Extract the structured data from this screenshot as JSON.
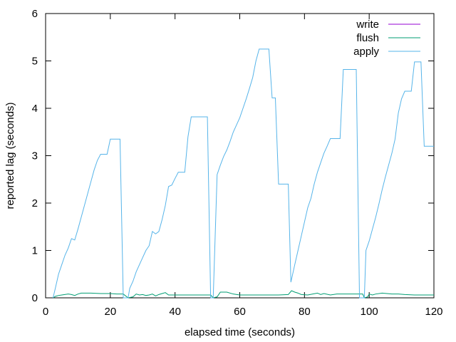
{
  "chart_data": {
    "type": "line",
    "title": "",
    "xlabel": "elapsed time (seconds)",
    "ylabel": "reported lag (seconds)",
    "xlim": [
      0,
      120
    ],
    "ylim": [
      0,
      6
    ],
    "x_ticks": [
      "0",
      "20",
      "40",
      "60",
      "80",
      "100",
      "120"
    ],
    "y_ticks": [
      "0",
      "1",
      "2",
      "3",
      "4",
      "5",
      "6"
    ],
    "grid": false,
    "legend_position": "top-right",
    "series": [
      {
        "name": "write",
        "color": "#9400d3",
        "points": []
      },
      {
        "name": "flush",
        "color": "#009e73",
        "points": [
          [
            2.3,
            0.0
          ],
          [
            3,
            0.03
          ],
          [
            4,
            0.05
          ],
          [
            5,
            0.06
          ],
          [
            7,
            0.08
          ],
          [
            8,
            0.07
          ],
          [
            9,
            0.05
          ],
          [
            10,
            0.08
          ],
          [
            11,
            0.1
          ],
          [
            14,
            0.1
          ],
          [
            17,
            0.09
          ],
          [
            20,
            0.09
          ],
          [
            22,
            0.08
          ],
          [
            24,
            0.08
          ],
          [
            25.5,
            0.0
          ],
          [
            27,
            0.02
          ],
          [
            28,
            0.08
          ],
          [
            29,
            0.06
          ],
          [
            30,
            0.07
          ],
          [
            31,
            0.05
          ],
          [
            32,
            0.06
          ],
          [
            33,
            0.08
          ],
          [
            34,
            0.04
          ],
          [
            35,
            0.07
          ],
          [
            36,
            0.09
          ],
          [
            37,
            0.11
          ],
          [
            38,
            0.06
          ],
          [
            40,
            0.06
          ],
          [
            44,
            0.06
          ],
          [
            48,
            0.06
          ],
          [
            51,
            0.06
          ],
          [
            51.8,
            0.0
          ],
          [
            53,
            0.02
          ],
          [
            54,
            0.12
          ],
          [
            56,
            0.12
          ],
          [
            58,
            0.08
          ],
          [
            60,
            0.06
          ],
          [
            64,
            0.06
          ],
          [
            68,
            0.06
          ],
          [
            72,
            0.06
          ],
          [
            75,
            0.07
          ],
          [
            76,
            0.15
          ],
          [
            77,
            0.12
          ],
          [
            78,
            0.1
          ],
          [
            79,
            0.07
          ],
          [
            81,
            0.06
          ],
          [
            84,
            0.1
          ],
          [
            85,
            0.07
          ],
          [
            86,
            0.09
          ],
          [
            88,
            0.06
          ],
          [
            90,
            0.08
          ],
          [
            93,
            0.08
          ],
          [
            96,
            0.08
          ],
          [
            98,
            0.08
          ],
          [
            98.5,
            0.0
          ],
          [
            99.5,
            0.02
          ],
          [
            100,
            0.08
          ],
          [
            101,
            0.06
          ],
          [
            102,
            0.08
          ],
          [
            104,
            0.1
          ],
          [
            107,
            0.08
          ],
          [
            109,
            0.08
          ],
          [
            111,
            0.07
          ],
          [
            114,
            0.06
          ],
          [
            117,
            0.06
          ],
          [
            120,
            0.06
          ]
        ]
      },
      {
        "name": "apply",
        "color": "#56b4e9",
        "points": [
          [
            2.3,
            0.0
          ],
          [
            3,
            0.2
          ],
          [
            4,
            0.5
          ],
          [
            5,
            0.7
          ],
          [
            6,
            0.9
          ],
          [
            7,
            1.05
          ],
          [
            8,
            1.25
          ],
          [
            9,
            1.22
          ],
          [
            10,
            1.45
          ],
          [
            11,
            1.7
          ],
          [
            12,
            1.95
          ],
          [
            13,
            2.2
          ],
          [
            14,
            2.45
          ],
          [
            15,
            2.7
          ],
          [
            16,
            2.9
          ],
          [
            17,
            3.03
          ],
          [
            19,
            3.03
          ],
          [
            20,
            3.35
          ],
          [
            23,
            3.35
          ],
          [
            24,
            0.0
          ],
          [
            25.5,
            0.0
          ],
          [
            26,
            0.2
          ],
          [
            27,
            0.35
          ],
          [
            28,
            0.55
          ],
          [
            29,
            0.7
          ],
          [
            30,
            0.85
          ],
          [
            31,
            1.0
          ],
          [
            32,
            1.1
          ],
          [
            33,
            1.4
          ],
          [
            34,
            1.35
          ],
          [
            35,
            1.4
          ],
          [
            36,
            1.65
          ],
          [
            37,
            1.95
          ],
          [
            38,
            2.35
          ],
          [
            39,
            2.38
          ],
          [
            40,
            2.52
          ],
          [
            41,
            2.65
          ],
          [
            43,
            2.65
          ],
          [
            44,
            3.4
          ],
          [
            45,
            3.82
          ],
          [
            48,
            3.82
          ],
          [
            50,
            3.82
          ],
          [
            51,
            0.0
          ],
          [
            51.8,
            0.0
          ],
          [
            53,
            2.6
          ],
          [
            54,
            2.8
          ],
          [
            55,
            2.98
          ],
          [
            56,
            3.12
          ],
          [
            57,
            3.3
          ],
          [
            58,
            3.5
          ],
          [
            59,
            3.65
          ],
          [
            60,
            3.8
          ],
          [
            61,
            4.0
          ],
          [
            62,
            4.2
          ],
          [
            63,
            4.42
          ],
          [
            64,
            4.65
          ],
          [
            65,
            5.0
          ],
          [
            66,
            5.25
          ],
          [
            69,
            5.25
          ],
          [
            70,
            4.22
          ],
          [
            71,
            4.22
          ],
          [
            72,
            2.4
          ],
          [
            74,
            2.4
          ],
          [
            75,
            2.4
          ],
          [
            75.8,
            0.33
          ],
          [
            77,
            0.7
          ],
          [
            78,
            1.0
          ],
          [
            79,
            1.3
          ],
          [
            80,
            1.6
          ],
          [
            81,
            1.9
          ],
          [
            82,
            2.1
          ],
          [
            83,
            2.4
          ],
          [
            84,
            2.65
          ],
          [
            85,
            2.85
          ],
          [
            86,
            3.05
          ],
          [
            87,
            3.2
          ],
          [
            88,
            3.36
          ],
          [
            91,
            3.36
          ],
          [
            92,
            4.82
          ],
          [
            96,
            4.82
          ],
          [
            97,
            0.0
          ],
          [
            98.5,
            0.0
          ],
          [
            99,
            1.0
          ],
          [
            100,
            1.2
          ],
          [
            101,
            1.45
          ],
          [
            102,
            1.7
          ],
          [
            103,
            1.98
          ],
          [
            104,
            2.28
          ],
          [
            105,
            2.55
          ],
          [
            106,
            2.8
          ],
          [
            107,
            3.05
          ],
          [
            108,
            3.35
          ],
          [
            109,
            3.9
          ],
          [
            110,
            4.2
          ],
          [
            111,
            4.36
          ],
          [
            113,
            4.36
          ],
          [
            114,
            4.98
          ],
          [
            116,
            4.98
          ],
          [
            117,
            3.2
          ],
          [
            120,
            3.2
          ]
        ]
      }
    ]
  }
}
